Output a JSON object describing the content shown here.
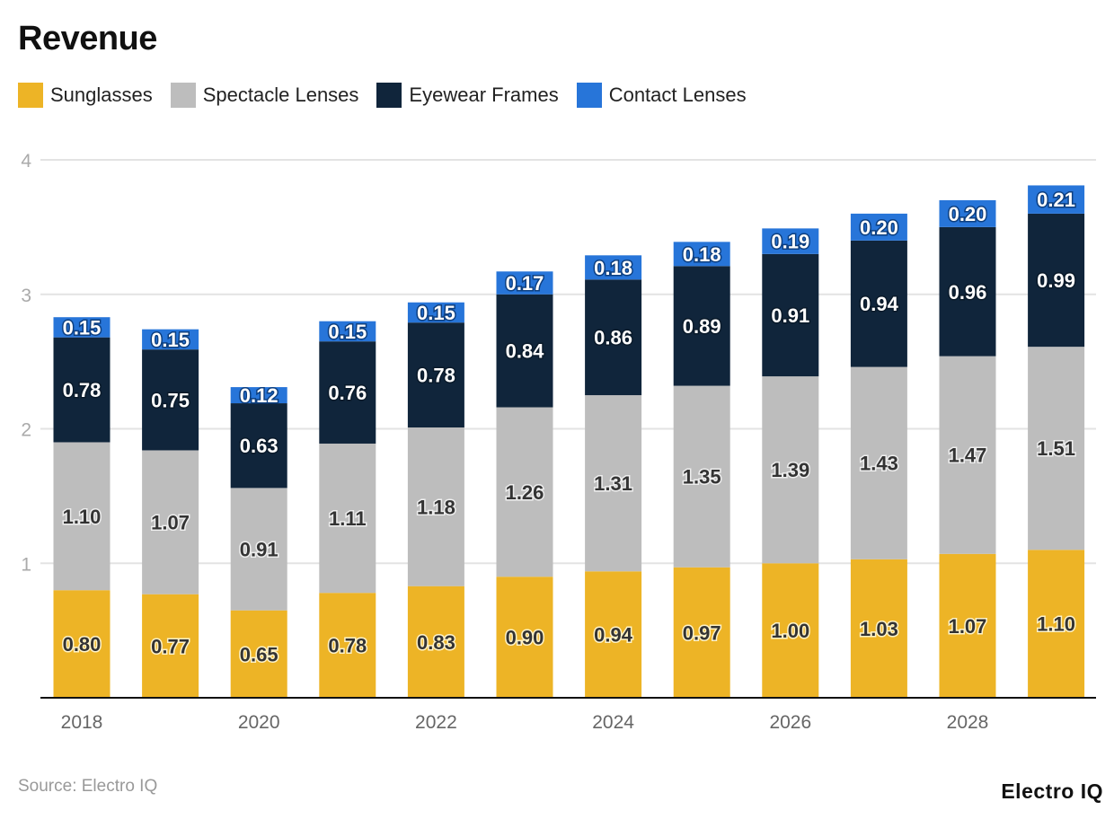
{
  "chart_data": {
    "type": "bar",
    "stacked": true,
    "title": "Revenue",
    "categories": [
      "2018",
      "2019",
      "2020",
      "2021",
      "2022",
      "2023",
      "2024",
      "2025",
      "2026",
      "2027",
      "2028",
      "2029"
    ],
    "tick_labels": [
      "2018",
      "2020",
      "2022",
      "2024",
      "2026",
      "2028"
    ],
    "series": [
      {
        "name": "Sunglasses",
        "color": "#EDB426",
        "values": [
          0.8,
          0.77,
          0.65,
          0.78,
          0.83,
          0.9,
          0.94,
          0.97,
          1.0,
          1.03,
          1.07,
          1.1
        ]
      },
      {
        "name": "Spectacle Lenses",
        "color": "#BDBDBD",
        "values": [
          1.1,
          1.07,
          0.91,
          1.11,
          1.18,
          1.26,
          1.31,
          1.35,
          1.39,
          1.43,
          1.47,
          1.51
        ]
      },
      {
        "name": "Eyewear Frames",
        "color": "#10253B",
        "values": [
          0.78,
          0.75,
          0.63,
          0.76,
          0.78,
          0.84,
          0.86,
          0.89,
          0.91,
          0.94,
          0.96,
          0.99
        ]
      },
      {
        "name": "Contact Lenses",
        "color": "#2775D9",
        "values": [
          0.15,
          0.15,
          0.12,
          0.15,
          0.15,
          0.17,
          0.18,
          0.18,
          0.19,
          0.2,
          0.2,
          0.21
        ]
      }
    ],
    "ylim": [
      0,
      4
    ],
    "yticks": [
      1,
      2,
      3,
      4
    ],
    "grid": true,
    "legend_position": "top-left",
    "xlabel": "",
    "ylabel": ""
  },
  "source": "Source: Electro IQ",
  "logo": "Electro IQ"
}
